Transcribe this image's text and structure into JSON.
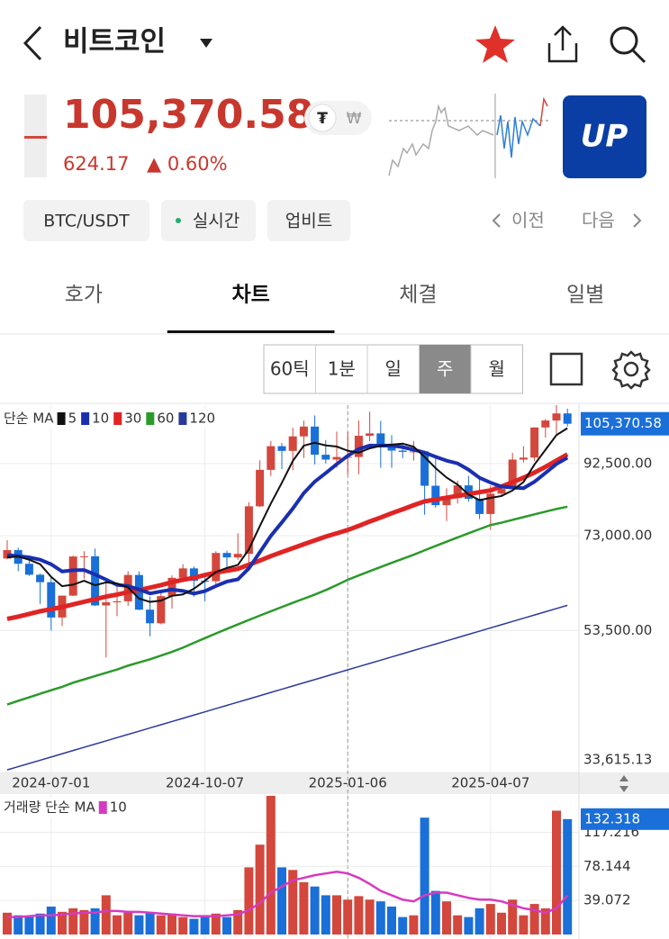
{
  "header": {
    "title": "비트코인"
  },
  "price": {
    "last": "105,370.58",
    "change": "624.17",
    "change_pct": "▲ 0.60%",
    "currency_a": "₮",
    "currency_b": "₩",
    "logo": "UP"
  },
  "chips": [
    "BTC/USDT",
    "실시간",
    "업비트"
  ],
  "nav": {
    "prev": "이전",
    "next": "다음"
  },
  "tabs": [
    "호가",
    "차트",
    "체결",
    "일별"
  ],
  "active_tab": "차트",
  "intervals": [
    "60틱",
    "1분",
    "일",
    "주",
    "월"
  ],
  "active_interval": "주",
  "chart_data": [
    {
      "type": "candlestick",
      "legend_title": "단순 MA",
      "log_scale": true,
      "grid": true,
      "up_color": "#d3473d",
      "down_color": "#1a6fd8",
      "categories": [
        null,
        null,
        null,
        null,
        "2024-07-01",
        null,
        null,
        null,
        null,
        null,
        null,
        null,
        null,
        null,
        null,
        null,
        null,
        null,
        "2024-10-07",
        null,
        null,
        null,
        null,
        null,
        null,
        null,
        null,
        null,
        null,
        null,
        null,
        "2025-01-06",
        null,
        null,
        null,
        null,
        null,
        null,
        null,
        null,
        null,
        null,
        null,
        null,
        "2025-04-07",
        null,
        null,
        null,
        null,
        null,
        null,
        null
      ],
      "open": [
        67750,
        69650,
        66600,
        64250,
        62700,
        55850,
        60000,
        68200,
        68250,
        58100,
        58700,
        58900,
        64200,
        57300,
        54800,
        59900,
        63600,
        65600,
        63000,
        62900,
        69000,
        68000,
        68800,
        80400,
        90600,
        97900,
        96400,
        101100,
        104400,
        95200,
        93700,
        94500,
        94500,
        101300,
        102100,
        97700,
        96500,
        96100,
        96250,
        86000,
        80700,
        82600,
        86100,
        82400,
        78400,
        83800,
        85100,
        93700,
        94300,
        104100,
        106500,
        109000
      ],
      "high": [
        71950,
        70200,
        67250,
        64500,
        63800,
        60000,
        68400,
        69400,
        70000,
        62700,
        61800,
        65000,
        64950,
        59800,
        60600,
        64100,
        66500,
        66000,
        64500,
        69400,
        69500,
        73600,
        81500,
        93500,
        99600,
        98900,
        104000,
        106500,
        108300,
        99900,
        102700,
        102500,
        106500,
        109600,
        106400,
        101500,
        98800,
        99500,
        96500,
        95000,
        85300,
        87500,
        88800,
        88500,
        86100,
        86500,
        95800,
        97900,
        104100,
        107000,
        112000,
        110700
      ],
      "low": [
        67600,
        65000,
        64000,
        58400,
        53500,
        54300,
        59900,
        63400,
        58000,
        49000,
        56100,
        58000,
        57200,
        52500,
        54600,
        57500,
        62700,
        59800,
        58900,
        62000,
        65000,
        67500,
        66800,
        80200,
        88800,
        90800,
        90500,
        94200,
        92200,
        92500,
        91200,
        89200,
        89300,
        99500,
        91200,
        91200,
        94100,
        93400,
        78200,
        80000,
        76600,
        81100,
        81600,
        77100,
        74400,
        83000,
        85100,
        92800,
        93300,
        100700,
        102000,
        104400
      ],
      "close": [
        69650,
        66600,
        64250,
        62700,
        55850,
        60000,
        68200,
        68250,
        58100,
        58700,
        58900,
        64200,
        57300,
        54800,
        59900,
        63600,
        65600,
        63000,
        62900,
        69000,
        68000,
        68800,
        80400,
        90600,
        97900,
        96400,
        101100,
        104400,
        95200,
        93700,
        94500,
        94500,
        101300,
        102100,
        97700,
        96500,
        96100,
        96250,
        86000,
        80700,
        82600,
        86100,
        82400,
        78400,
        83800,
        85100,
        93700,
        94300,
        104100,
        106500,
        109000,
        105370.58
      ],
      "last_label": "105,370.58",
      "series": [
        {
          "name": "5",
          "color": "#111111",
          "values": [
            68000,
            68200,
            67500,
            66500,
            63810,
            61880,
            62200,
            63000,
            62080,
            62650,
            62430,
            61630,
            59440,
            58780,
            59020,
            59960,
            60240,
            61380,
            63000,
            64820,
            65700,
            66340,
            69820,
            75360,
            81140,
            86820,
            93280,
            98080,
            99000,
            98160,
            97780,
            96460,
            95840,
            97220,
            98020,
            98420,
            98740,
            97730,
            94510,
            91110,
            88330,
            86330,
            83560,
            82040,
            82660,
            83160,
            84680,
            87060,
            92200,
            96740,
            101520,
            103854
          ]
        },
        {
          "name": "10",
          "color": "#1a2fb0",
          "values": [
            68500,
            68300,
            68000,
            67500,
            66500,
            64940,
            65200,
            65250,
            64290,
            63230,
            62155,
            61915,
            61220,
            60430,
            60835,
            61195,
            60935,
            60410,
            60890,
            61920,
            62830,
            63290,
            65600,
            69180,
            72980,
            76260,
            79810,
            83950,
            87180,
            89650,
            92300,
            94870,
            96960,
            98110,
            98090,
            98100,
            97600,
            96785,
            95865,
            94565,
            93375,
            92535,
            90645,
            88275,
            86885,
            85745,
            85505,
            85310,
            87120,
            89700,
            92340,
            94267
          ]
        },
        {
          "name": "30",
          "color": "#e02424",
          "values": [
            55600,
            56000,
            56500,
            57000,
            57400,
            57800,
            58300,
            58800,
            59300,
            59800,
            60200,
            60700,
            61100,
            61600,
            62100,
            62700,
            63200,
            63600,
            64200,
            64700,
            65100,
            65500,
            66400,
            67300,
            68300,
            69200,
            70100,
            71000,
            71900,
            72800,
            73600,
            74400,
            75400,
            76500,
            77500,
            78600,
            79600,
            80700,
            81700,
            82200,
            82700,
            83200,
            83700,
            84200,
            84700,
            85800,
            87000,
            88300,
            89800,
            91500,
            93400,
            95300
          ]
        },
        {
          "name": "60",
          "color": "#2a9a2a",
          "values": [
            42000,
            42500,
            43000,
            43500,
            44000,
            44500,
            45100,
            45600,
            46100,
            46600,
            47100,
            47700,
            48200,
            48700,
            49300,
            49900,
            50600,
            51400,
            52200,
            53000,
            53800,
            54600,
            55400,
            56200,
            57000,
            57800,
            58600,
            59400,
            60200,
            61100,
            62100,
            63200,
            64100,
            65000,
            65900,
            66800,
            67700,
            68600,
            69600,
            70600,
            71600,
            72600,
            73600,
            74600,
            75600,
            76200,
            76900,
            77600,
            78300,
            79000,
            79700,
            80300
          ]
        },
        {
          "name": "120",
          "color": "#2a3a9a",
          "values": [
            33900,
            34260,
            34620,
            34990,
            35360,
            35740,
            36120,
            36500,
            36890,
            37280,
            37680,
            38080,
            38480,
            38890,
            39300,
            39720,
            40140,
            40570,
            41000,
            41440,
            41880,
            42320,
            42770,
            43230,
            43690,
            44150,
            44620,
            45100,
            45570,
            46060,
            46550,
            47050,
            47550,
            48050,
            48560,
            49080,
            49600,
            50130,
            50660,
            51200,
            51740,
            52290,
            52850,
            53410,
            53980,
            54550,
            55130,
            55720,
            56310,
            56910,
            57510,
            58120
          ]
        }
      ],
      "ylim": [
        33615.13,
        112000
      ],
      "yticks": [
        {
          "value": 33615.13,
          "label": "33,615.13"
        },
        {
          "value": 53500,
          "label": "53,500.00"
        },
        {
          "value": 73000,
          "label": "73,000.00"
        },
        {
          "value": 92500,
          "label": "92,500.00"
        }
      ]
    },
    {
      "type": "bar",
      "legend_title": "거래량 단순 MA",
      "grid": true,
      "values": [
        25,
        22,
        20,
        24,
        32,
        26,
        30,
        28,
        30,
        45,
        22,
        25,
        22,
        25,
        22,
        24,
        20,
        18,
        20,
        24,
        20,
        28,
        77,
        103,
        159,
        77,
        74,
        60,
        55,
        45,
        45,
        40,
        44,
        40,
        38,
        32,
        20,
        22,
        134,
        50,
        38,
        22,
        20,
        30,
        35,
        25,
        40,
        22,
        35,
        30,
        142,
        132.318
      ],
      "series": [
        {
          "name": "10",
          "color": "#d63ac0",
          "values": [
            20,
            20,
            21,
            22,
            22,
            23,
            24,
            25,
            25,
            27,
            27,
            26,
            26,
            25,
            24,
            23,
            22,
            21,
            21,
            21,
            22,
            23,
            28,
            36,
            48,
            55,
            62,
            65,
            68,
            70,
            72,
            70,
            65,
            58,
            50,
            45,
            40,
            38,
            45,
            48,
            48,
            45,
            42,
            40,
            40,
            38,
            34,
            30,
            28,
            25,
            30,
            45
          ]
        }
      ],
      "ylim": [
        0,
        160
      ],
      "yticks": [
        39.072,
        78.144,
        117.216
      ]
    }
  ]
}
